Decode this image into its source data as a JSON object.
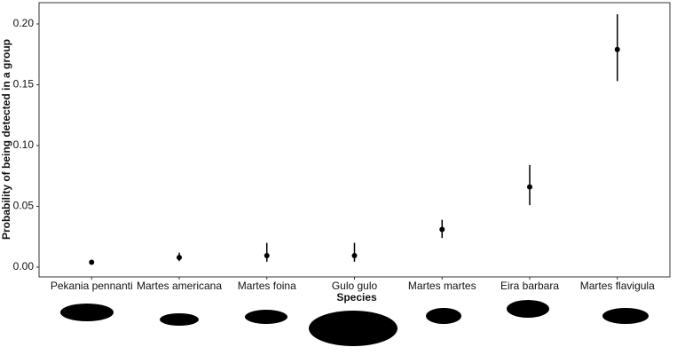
{
  "chart_data": {
    "type": "pointrange",
    "xlabel": "Species",
    "ylabel": "Probability of being detected in a group",
    "categories": [
      "Pekania pennanti",
      "Martes americana",
      "Martes foina",
      "Gulo gulo",
      "Martes martes",
      "Eira barbara",
      "Martes flavigula"
    ],
    "values": [
      0.004,
      0.008,
      0.0095,
      0.0095,
      0.031,
      0.066,
      0.179
    ],
    "lower": [
      0.003,
      0.005,
      0.0045,
      0.0045,
      0.024,
      0.051,
      0.153
    ],
    "upper": [
      0.005,
      0.012,
      0.02,
      0.02,
      0.039,
      0.084,
      0.208
    ],
    "color": "#000000",
    "ylim": [
      -0.008,
      0.2175
    ],
    "yticks": [
      {
        "value": 0,
        "label": "0.00"
      },
      {
        "value": 0.05,
        "label": "0.05"
      },
      {
        "value": 0.1,
        "label": "0.10"
      },
      {
        "value": 0.15,
        "label": "0.15"
      },
      {
        "value": 0.2,
        "label": "0.20"
      }
    ],
    "grid": false
  }
}
